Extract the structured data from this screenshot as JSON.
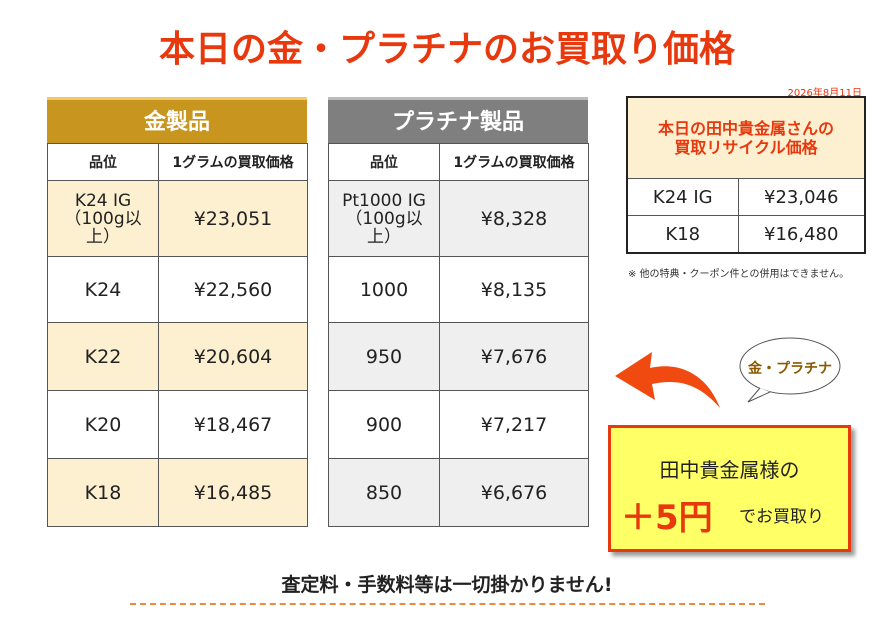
{
  "title": "本日の金・プラチナのお買取り価格",
  "gold_table": {
    "heading": "金製品",
    "columns": [
      "品位",
      "1グラムの買取価格"
    ],
    "rows": [
      [
        "K24 IG（100g以上）",
        "¥23,051"
      ],
      [
        "K24",
        "¥22,560"
      ],
      [
        "K22",
        "¥20,604"
      ],
      [
        "K20",
        "¥18,467"
      ],
      [
        "K18",
        "¥16,485"
      ]
    ]
  },
  "platinum_table": {
    "heading": "プラチナ製品",
    "columns": [
      "品位",
      "1グラムの買取価格"
    ],
    "rows": [
      [
        "Pt1000 IG（100g以上）",
        "¥8,328"
      ],
      [
        "1000",
        "¥8,135"
      ],
      [
        "950",
        "¥7,676"
      ],
      [
        "900",
        "¥7,217"
      ],
      [
        "850",
        "¥6,676"
      ]
    ]
  },
  "reference": {
    "date": "2026年8月11日",
    "heading": [
      "本日の田中貴金属さんの",
      "買取リサイクル価格"
    ],
    "rows": [
      [
        "K24 IG",
        "¥23,046"
      ],
      [
        "K18",
        "¥16,480"
      ]
    ],
    "note": "※ 他の特典・クーポン件との併用はできません。"
  },
  "bubble": "金・プラチナ",
  "promo": {
    "line1": "田中貴金属様の",
    "bonus": "＋5円",
    "line2": "でお買取り"
  },
  "footer": "査定料・手数料等は一切掛かりません!"
}
